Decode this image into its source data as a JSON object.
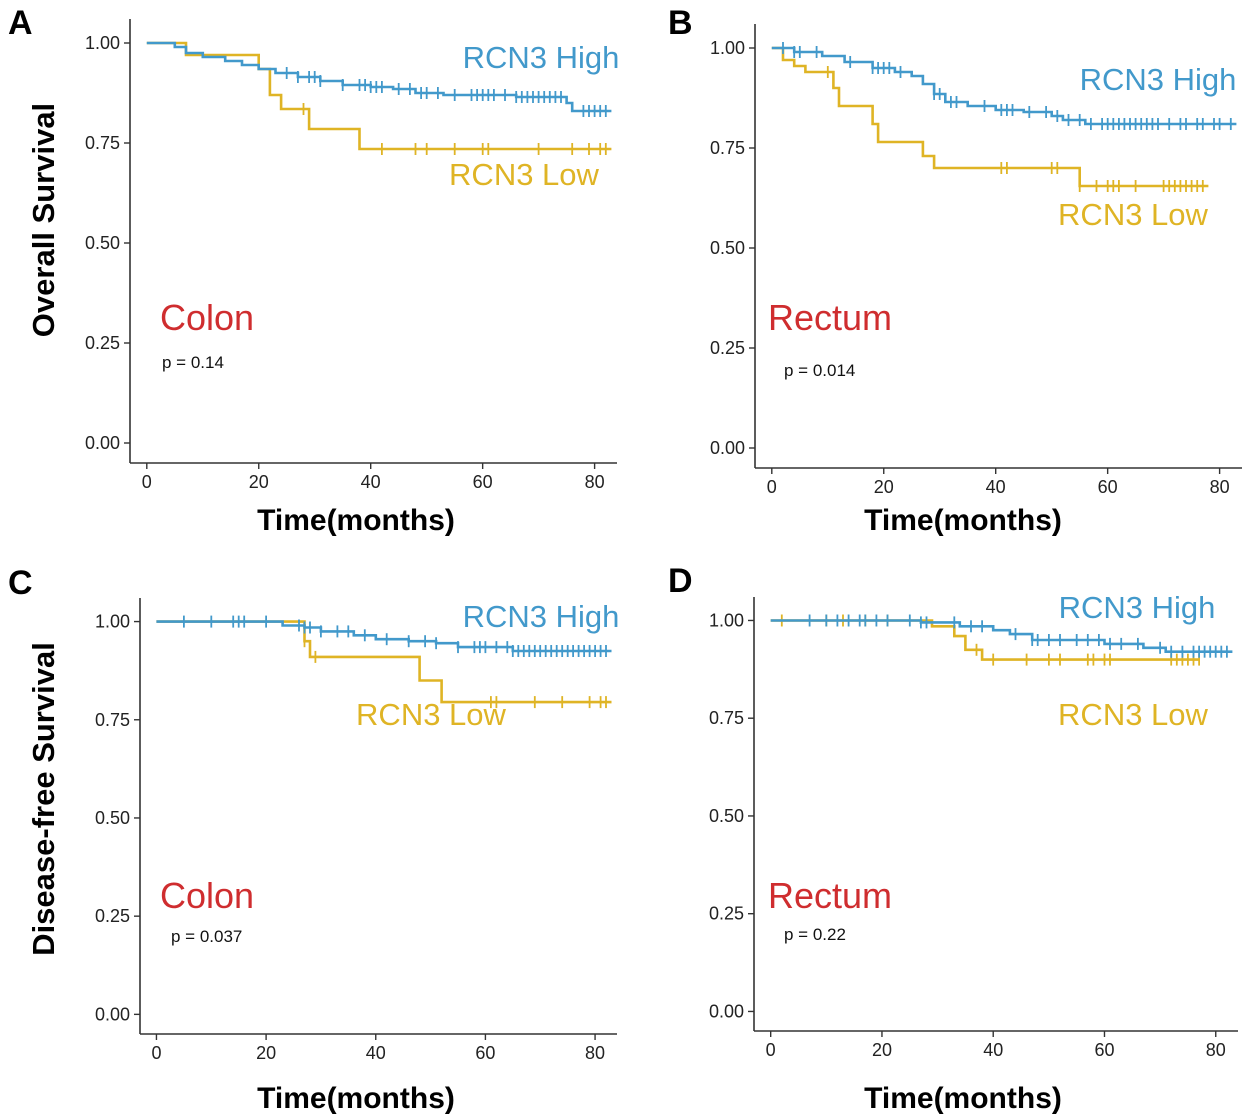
{
  "figure": {
    "colors": {
      "high": "#4299cb",
      "low": "#dfb425",
      "site": "#cf2d2f",
      "axis": "#333333"
    }
  },
  "chart_data": [
    {
      "panel": "A",
      "type": "line",
      "subtype": "kaplan-meier",
      "site": "Colon",
      "p_text": "p = 0.14",
      "ylabel": "Overall Survival",
      "xlabel": "Time(months)",
      "xlim": [
        -3,
        84
      ],
      "ylim": [
        -0.05,
        1.06
      ],
      "xticks": [
        0,
        20,
        40,
        60,
        80
      ],
      "xtick_labels": [
        "0",
        "20",
        "40",
        "60",
        "80"
      ],
      "yticks": [
        0,
        0.25,
        0.5,
        0.75,
        1.0
      ],
      "ytick_labels": [
        "0.00",
        "0.25",
        "0.50",
        "0.75",
        "1.00"
      ],
      "series": [
        {
          "name": "RCN3 High",
          "key": "high",
          "steps": [
            [
              0,
              1.0
            ],
            [
              5,
              0.99
            ],
            [
              7,
              0.975
            ],
            [
              10,
              0.965
            ],
            [
              14,
              0.955
            ],
            [
              17,
              0.945
            ],
            [
              20,
              0.935
            ],
            [
              23,
              0.925
            ],
            [
              27,
              0.915
            ],
            [
              31,
              0.905
            ],
            [
              35,
              0.895
            ],
            [
              40,
              0.89
            ],
            [
              44,
              0.885
            ],
            [
              48,
              0.875
            ],
            [
              53,
              0.87
            ],
            [
              66,
              0.865
            ],
            [
              75,
              0.85
            ],
            [
              76,
              0.83
            ],
            [
              83,
              0.83
            ]
          ],
          "censor": [
            25,
            27,
            29,
            30,
            31,
            35,
            38,
            39,
            40,
            41,
            42,
            45,
            47,
            49,
            50,
            52,
            55,
            58,
            59,
            60,
            61,
            62,
            64,
            66,
            67,
            68,
            69,
            70,
            71,
            72,
            73,
            74,
            78,
            79,
            80,
            81,
            82
          ]
        },
        {
          "name": "RCN3 Low",
          "key": "low",
          "steps": [
            [
              0,
              1.0
            ],
            [
              7,
              0.97
            ],
            [
              20,
              0.935
            ],
            [
              22,
              0.87
            ],
            [
              24,
              0.835
            ],
            [
              29,
              0.785
            ],
            [
              38,
              0.735
            ],
            [
              83,
              0.735
            ]
          ],
          "censor": [
            28,
            42,
            48,
            50,
            55,
            60,
            61,
            70,
            76,
            79,
            81,
            82
          ]
        }
      ]
    },
    {
      "panel": "B",
      "type": "line",
      "subtype": "kaplan-meier",
      "site": "Rectum",
      "p_text": "p = 0.014",
      "ylabel": "",
      "xlabel": "Time(months)",
      "xlim": [
        -3,
        84
      ],
      "ylim": [
        -0.05,
        1.06
      ],
      "xticks": [
        0,
        20,
        40,
        60,
        80
      ],
      "xtick_labels": [
        "0",
        "20",
        "40",
        "60",
        "80"
      ],
      "yticks": [
        0,
        0.25,
        0.5,
        0.75,
        1.0
      ],
      "ytick_labels": [
        "0.00",
        "0.25",
        "0.50",
        "0.75",
        "1.00"
      ],
      "series": [
        {
          "name": "RCN3 High",
          "key": "high",
          "steps": [
            [
              0,
              1.0
            ],
            [
              4,
              0.99
            ],
            [
              9,
              0.98
            ],
            [
              13,
              0.965
            ],
            [
              18,
              0.95
            ],
            [
              22,
              0.94
            ],
            [
              25,
              0.93
            ],
            [
              27,
              0.91
            ],
            [
              29,
              0.885
            ],
            [
              31,
              0.865
            ],
            [
              35,
              0.855
            ],
            [
              40,
              0.845
            ],
            [
              45,
              0.84
            ],
            [
              50,
              0.83
            ],
            [
              52,
              0.82
            ],
            [
              56,
              0.81
            ],
            [
              83,
              0.81
            ]
          ],
          "censor": [
            2,
            4,
            5,
            8,
            14,
            18,
            19,
            20,
            21,
            23,
            29,
            30,
            32,
            33,
            38,
            41,
            42,
            43,
            46,
            49,
            51,
            53,
            55,
            57,
            59,
            60,
            61,
            62,
            63,
            64,
            65,
            66,
            67,
            68,
            69,
            71,
            73,
            74,
            76,
            77,
            79,
            80,
            82
          ]
        },
        {
          "name": "RCN3 Low",
          "key": "low",
          "steps": [
            [
              0,
              1.0
            ],
            [
              2,
              0.97
            ],
            [
              4,
              0.955
            ],
            [
              6,
              0.94
            ],
            [
              11,
              0.9
            ],
            [
              12,
              0.855
            ],
            [
              18,
              0.81
            ],
            [
              19,
              0.765
            ],
            [
              27,
              0.73
            ],
            [
              29,
              0.7
            ],
            [
              55,
              0.655
            ],
            [
              78,
              0.655
            ]
          ],
          "censor": [
            10,
            41,
            42,
            50,
            51,
            55,
            58,
            60,
            61,
            62,
            65,
            70,
            71,
            72,
            73,
            74,
            75,
            76,
            77
          ]
        }
      ]
    },
    {
      "panel": "C",
      "type": "line",
      "subtype": "kaplan-meier",
      "site": "Colon",
      "p_text": "p = 0.037",
      "ylabel": "Disease-free Survival",
      "xlabel": "Time(months)",
      "xlim": [
        -3,
        84
      ],
      "ylim": [
        -0.05,
        1.06
      ],
      "xticks": [
        0,
        20,
        40,
        60,
        80
      ],
      "xtick_labels": [
        "0",
        "20",
        "40",
        "60",
        "80"
      ],
      "yticks": [
        0,
        0.25,
        0.5,
        0.75,
        1.0
      ],
      "ytick_labels": [
        "0.00",
        "0.25",
        "0.50",
        "0.75",
        "1.00"
      ],
      "series": [
        {
          "name": "RCN3 High",
          "key": "high",
          "steps": [
            [
              0,
              1.0
            ],
            [
              23,
              0.99
            ],
            [
              27,
              0.985
            ],
            [
              30,
              0.975
            ],
            [
              36,
              0.965
            ],
            [
              40,
              0.955
            ],
            [
              46,
              0.95
            ],
            [
              51,
              0.945
            ],
            [
              55,
              0.935
            ],
            [
              65,
              0.925
            ],
            [
              83,
              0.925
            ]
          ],
          "censor": [
            5,
            10,
            14,
            15,
            16,
            20,
            26,
            27,
            28,
            30,
            33,
            35,
            38,
            42,
            46,
            49,
            51,
            55,
            58,
            59,
            60,
            62,
            64,
            65,
            66,
            67,
            68,
            69,
            70,
            71,
            72,
            73,
            74,
            75,
            76,
            77,
            78,
            79,
            80,
            81,
            82
          ]
        },
        {
          "name": "RCN3 Low",
          "key": "low",
          "steps": [
            [
              0,
              1.0
            ],
            [
              27,
              0.95
            ],
            [
              28,
              0.91
            ],
            [
              48,
              0.85
            ],
            [
              52,
              0.795
            ],
            [
              83,
              0.795
            ]
          ],
          "censor": [
            27,
            29,
            61,
            62,
            69,
            74,
            79,
            81,
            82
          ]
        }
      ]
    },
    {
      "panel": "D",
      "type": "line",
      "subtype": "kaplan-meier",
      "site": "Rectum",
      "p_text": "p = 0.22",
      "ylabel": "",
      "xlabel": "Time(months)",
      "xlim": [
        -3,
        84
      ],
      "ylim": [
        -0.05,
        1.06
      ],
      "xticks": [
        0,
        20,
        40,
        60,
        80
      ],
      "xtick_labels": [
        "0",
        "20",
        "40",
        "60",
        "80"
      ],
      "yticks": [
        0,
        0.25,
        0.5,
        0.75,
        1.0
      ],
      "ytick_labels": [
        "0.00",
        "0.25",
        "0.50",
        "0.75",
        "1.00"
      ],
      "series": [
        {
          "name": "RCN3 High",
          "key": "high",
          "steps": [
            [
              0,
              1.0
            ],
            [
              27,
              0.995
            ],
            [
              34,
              0.985
            ],
            [
              40,
              0.975
            ],
            [
              43,
              0.965
            ],
            [
              47,
              0.95
            ],
            [
              60,
              0.94
            ],
            [
              67,
              0.93
            ],
            [
              71,
              0.92
            ],
            [
              83,
              0.92
            ]
          ],
          "censor": [
            7,
            10,
            12,
            14,
            16,
            17,
            19,
            21,
            25,
            27,
            28,
            33,
            36,
            38,
            44,
            47,
            48,
            50,
            52,
            55,
            57,
            59,
            61,
            63,
            66,
            70,
            72,
            74,
            76,
            77,
            78,
            79,
            80,
            81,
            82
          ]
        },
        {
          "name": "RCN3 Low",
          "key": "low",
          "steps": [
            [
              0,
              1.0
            ],
            [
              29,
              0.985
            ],
            [
              33,
              0.96
            ],
            [
              35,
              0.925
            ],
            [
              38,
              0.9
            ],
            [
              77,
              0.9
            ]
          ],
          "censor": [
            2,
            10,
            13,
            17,
            21,
            37,
            40,
            46,
            50,
            52,
            57,
            58,
            60,
            61,
            72,
            73,
            74,
            75,
            76,
            77
          ]
        }
      ]
    }
  ]
}
